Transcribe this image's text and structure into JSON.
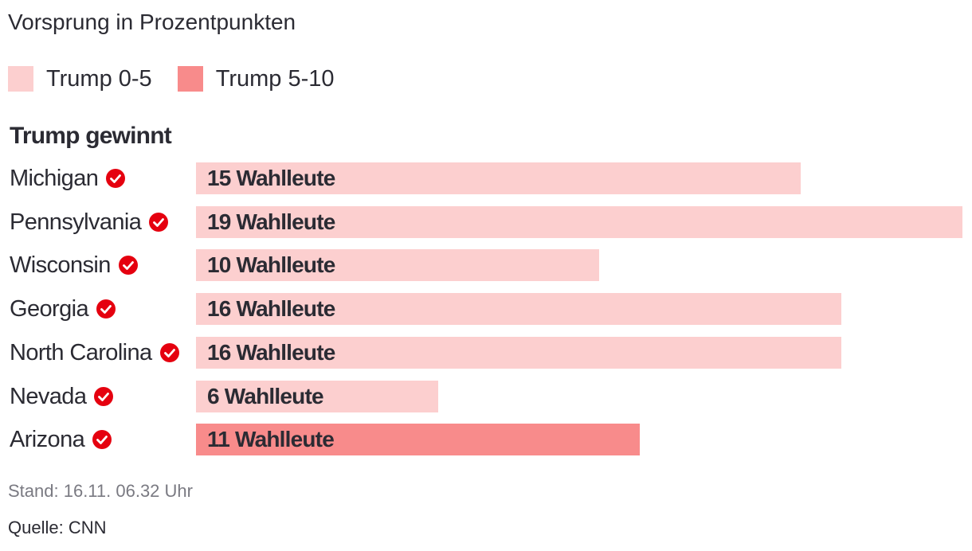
{
  "header": {
    "subtitle": "Vorsprung in Prozentpunkten"
  },
  "legend": [
    {
      "label": "Trump 0-5",
      "color": "#fccfcf"
    },
    {
      "label": "Trump 5-10",
      "color": "#f88b8b"
    }
  ],
  "group_title": "Trump gewinnt",
  "check_icon_color": "#e5000f",
  "chart_data": {
    "type": "bar",
    "orientation": "horizontal",
    "title": "Vorsprung in Prozentpunkten",
    "group": "Trump gewinnt",
    "unit_label": "Wahlleute",
    "categories": [
      "Michigan",
      "Pennsylvania",
      "Wisconsin",
      "Georgia",
      "North Carolina",
      "Nevada",
      "Arizona"
    ],
    "values": [
      15,
      19,
      10,
      16,
      16,
      6,
      11
    ],
    "bar_labels": [
      "15 Wahlleute",
      "19 Wahlleute",
      "10 Wahlleute",
      "16 Wahlleute",
      "16 Wahlleute",
      "6 Wahlleute",
      "11 Wahlleute"
    ],
    "margin_band": [
      "Trump 0-5",
      "Trump 0-5",
      "Trump 0-5",
      "Trump 0-5",
      "Trump 0-5",
      "Trump 0-5",
      "Trump 5-10"
    ],
    "winner_checked": [
      true,
      true,
      true,
      true,
      true,
      true,
      true
    ],
    "xlim": [
      0,
      19
    ],
    "legend": [
      "Trump 0-5",
      "Trump 5-10"
    ]
  },
  "footer": {
    "stand": "Stand: 16.11. 06.32 Uhr",
    "source": "Quelle: CNN"
  }
}
